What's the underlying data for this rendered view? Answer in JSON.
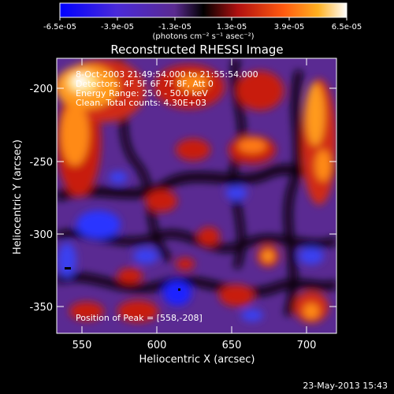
{
  "colorbar": {
    "tick_labels": [
      "-6.5e-05",
      "-3.9e-05",
      "-1.3e-05",
      "1.3e-05",
      "3.9e-05",
      "6.5e-05"
    ],
    "unit_label": "(photons cm⁻² s⁻¹ asec⁻²)"
  },
  "title": "Reconstructed RHESSI Image",
  "info_lines": [
    "8-Oct-2003 21:49:54.000 to 21:55:54.000",
    "Detectors: 4F 5F 6F 7F 8F, Att 0",
    "Energy Range: 25.0 - 50.0 keV",
    "Clean. Total counts: 4.30E+03"
  ],
  "peak_text": "Position of Peak = [558,-208]",
  "xlabel": "Heliocentric X (arcsec)",
  "ylabel": "Heliocentric Y (arcsec)",
  "x_ticks": [
    "550",
    "600",
    "650",
    "700"
  ],
  "y_ticks": [
    "-200",
    "-250",
    "-300",
    "-350"
  ],
  "footer": "23-May-2013 15:43",
  "colors": {
    "background": "#000000",
    "negative": "#1a1aff",
    "negative_mid": "#6a3aa8",
    "zero": "#000000",
    "positive_mid": "#d8281a",
    "positive_high": "#ffb020",
    "peak": "#ffffff"
  }
}
